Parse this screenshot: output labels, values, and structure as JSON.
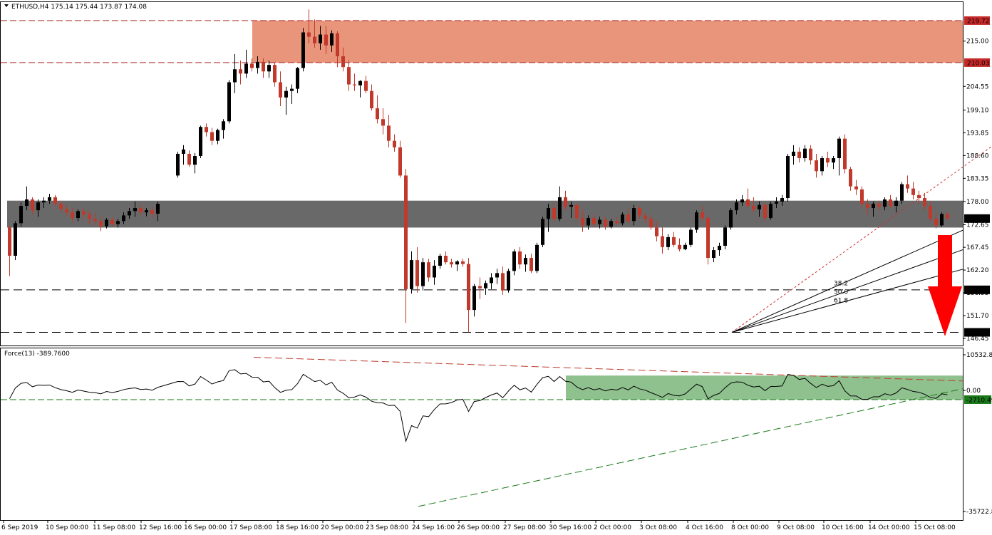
{
  "chart_data": [
    {
      "type": "candlestick",
      "header": {
        "title": "ETHUSD,H4",
        "ohlc": [
          "175.14",
          "175.44",
          "173.87",
          "174.08"
        ]
      },
      "ylim": [
        146.45,
        222.5
      ],
      "y_ticks": [
        "215.00",
        "204.55",
        "199.10",
        "193.85",
        "188.60",
        "183.35",
        "178.00",
        "172.65",
        "167.45",
        "162.20",
        "156.95",
        "151.70",
        "146.45"
      ],
      "price_labels": [
        {
          "value": 219.72,
          "text": "219.72",
          "color": "#c62828"
        },
        {
          "value": 210.03,
          "text": "210.03",
          "color": "#c62828"
        },
        {
          "value": 174.08,
          "text": "174.08",
          "color": "#000000"
        },
        {
          "value": 157.64,
          "text": "157.64",
          "color": "#000000"
        },
        {
          "value": 147.84,
          "text": "147.84",
          "color": "#000000"
        }
      ],
      "x_labels": [
        "6 Sep 2019",
        "10 Sep 00:00",
        "11 Sep 08:00",
        "12 Sep 16:00",
        "16 Sep 00:00",
        "17 Sep 08:00",
        "18 Sep 16:00",
        "20 Sep 00:00",
        "23 Sep 08:00",
        "24 Sep 16:00",
        "26 Sep 00:00",
        "27 Sep 08:00",
        "30 Sep 16:00",
        "2 Oct 00:00",
        "3 Oct 08:00",
        "4 Oct 16:00",
        "8 Oct 00:00",
        "9 Oct 08:00",
        "10 Oct 16:00",
        "14 Oct 00:00",
        "15 Oct 08:00"
      ],
      "candles_ohlc": [
        [
          172.0,
          172.5,
          160.8,
          165.5
        ],
        [
          165.5,
          173.5,
          164.5,
          173.0
        ],
        [
          173.0,
          177.8,
          172.2,
          177.0
        ],
        [
          177.0,
          181.5,
          176.0,
          178.5
        ],
        [
          178.5,
          179.0,
          175.0,
          176.0
        ],
        [
          176.0,
          178.5,
          174.5,
          177.8
        ],
        [
          177.8,
          179.0,
          176.5,
          178.2
        ],
        [
          178.2,
          179.8,
          177.5,
          179.0
        ],
        [
          179.0,
          179.5,
          176.8,
          177.5
        ],
        [
          177.5,
          178.2,
          175.5,
          176.3
        ],
        [
          176.3,
          177.2,
          174.8,
          175.5
        ],
        [
          175.5,
          176.5,
          173.2,
          174.2
        ],
        [
          174.2,
          176.2,
          173.5,
          175.8
        ],
        [
          175.8,
          176.5,
          174.0,
          175.0
        ],
        [
          175.0,
          175.8,
          172.8,
          174.0
        ],
        [
          174.0,
          175.5,
          172.5,
          173.5
        ],
        [
          173.5,
          174.5,
          171.2,
          172.3
        ],
        [
          172.3,
          174.2,
          171.8,
          173.8
        ],
        [
          173.8,
          174.5,
          172.2,
          172.8
        ],
        [
          172.8,
          174.0,
          172.0,
          173.5
        ],
        [
          173.5,
          175.5,
          172.8,
          174.8
        ],
        [
          174.8,
          176.5,
          174.0,
          175.8
        ],
        [
          175.8,
          178.0,
          174.5,
          176.5
        ],
        [
          176.5,
          177.5,
          174.8,
          175.5
        ],
        [
          175.5,
          176.5,
          174.6,
          176.0
        ],
        [
          176.0,
          176.8,
          174.2,
          175.2
        ],
        [
          175.2,
          178.0,
          173.5,
          177.5
        ],
        [
          184.0,
          189.5,
          183.5,
          189.0
        ],
        [
          189.0,
          191.0,
          186.5,
          190.0
        ],
        [
          189.0,
          189.8,
          186.0,
          186.5
        ],
        [
          186.5,
          189.2,
          184.5,
          188.5
        ],
        [
          188.5,
          195.5,
          188.0,
          195.2
        ],
        [
          195.2,
          196.0,
          193.0,
          194.0
        ],
        [
          194.0,
          195.0,
          191.0,
          192.0
        ],
        [
          192.0,
          194.8,
          191.2,
          194.5
        ],
        [
          194.5,
          197.0,
          192.5,
          196.5
        ],
        [
          196.5,
          206.0,
          196.0,
          205.5
        ],
        [
          205.5,
          212.0,
          203.0,
          208.5
        ],
        [
          208.5,
          210.5,
          205.0,
          207.5
        ],
        [
          207.5,
          213.0,
          206.5,
          209.8
        ],
        [
          209.8,
          211.0,
          208.0,
          208.8
        ],
        [
          208.8,
          211.5,
          207.5,
          210.2
        ],
        [
          210.2,
          211.0,
          206.5,
          208.0
        ],
        [
          208.0,
          210.5,
          206.5,
          209.5
        ],
        [
          209.5,
          210.0,
          204.5,
          205.5
        ],
        [
          205.5,
          208.0,
          200.0,
          202.0
        ],
        [
          202.0,
          204.5,
          198.0,
          203.5
        ],
        [
          203.5,
          205.0,
          200.5,
          204.0
        ],
        [
          204.0,
          209.0,
          203.0,
          208.8
        ],
        [
          208.8,
          218.0,
          208.0,
          217.0
        ],
        [
          217.0,
          222.3,
          214.5,
          216.0
        ],
        [
          216.0,
          220.0,
          213.5,
          214.5
        ],
        [
          214.5,
          218.5,
          213.0,
          216.5
        ],
        [
          216.5,
          218.5,
          212.0,
          214.0
        ],
        [
          214.0,
          217.5,
          212.5,
          216.8
        ],
        [
          216.8,
          217.3,
          209.0,
          211.5
        ],
        [
          211.5,
          213.5,
          208.0,
          209.0
        ],
        [
          209.0,
          210.5,
          203.5,
          205.0
        ],
        [
          205.0,
          207.5,
          203.5,
          204.8
        ],
        [
          204.8,
          206.0,
          202.0,
          205.8
        ],
        [
          205.8,
          207.0,
          203.0,
          203.5
        ],
        [
          203.5,
          205.0,
          199.0,
          199.5
        ],
        [
          199.5,
          202.5,
          196.0,
          197.0
        ],
        [
          197.0,
          199.5,
          193.5,
          195.5
        ],
        [
          195.5,
          198.0,
          190.5,
          192.0
        ],
        [
          192.0,
          193.5,
          189.5,
          190.5
        ],
        [
          190.5,
          192.0,
          183.5,
          184.0
        ],
        [
          184.0,
          185.5,
          150.0,
          157.8
        ],
        [
          157.8,
          166.5,
          156.8,
          164.5
        ],
        [
          164.5,
          167.5,
          157.0,
          158.5
        ],
        [
          158.5,
          165.0,
          157.5,
          164.0
        ],
        [
          164.0,
          164.8,
          159.5,
          160.5
        ],
        [
          160.5,
          164.5,
          158.8,
          163.2
        ],
        [
          163.2,
          166.0,
          162.5,
          165.5
        ],
        [
          165.5,
          166.5,
          163.5,
          164.0
        ],
        [
          164.0,
          164.8,
          162.8,
          163.5
        ],
        [
          163.5,
          164.5,
          162.0,
          164.2
        ],
        [
          164.2,
          164.8,
          163.0,
          163.6
        ],
        [
          163.6,
          165.0,
          147.84,
          153.0
        ],
        [
          153.0,
          159.0,
          151.5,
          158.5
        ],
        [
          158.5,
          160.5,
          155.5,
          158.0
        ],
        [
          158.0,
          159.8,
          156.5,
          159.2
        ],
        [
          159.2,
          161.5,
          157.8,
          160.5
        ],
        [
          160.5,
          162.5,
          159.0,
          161.5
        ],
        [
          161.5,
          163.0,
          156.5,
          157.5
        ],
        [
          157.5,
          162.5,
          157.0,
          162.0
        ],
        [
          162.0,
          167.0,
          161.0,
          166.5
        ],
        [
          166.5,
          167.5,
          162.5,
          163.5
        ],
        [
          163.5,
          165.8,
          161.8,
          165.0
        ],
        [
          165.0,
          166.0,
          161.5,
          162.0
        ],
        [
          162.0,
          168.5,
          161.5,
          168.0
        ],
        [
          168.0,
          174.5,
          167.5,
          174.0
        ],
        [
          174.0,
          177.5,
          171.0,
          176.5
        ],
        [
          176.5,
          177.8,
          173.5,
          174.0
        ],
        [
          174.0,
          181.5,
          173.5,
          179.0
        ],
        [
          179.0,
          180.5,
          176.0,
          176.8
        ],
        [
          176.8,
          178.0,
          174.2,
          177.2
        ],
        [
          177.2,
          177.5,
          173.5,
          174.2
        ],
        [
          174.2,
          176.0,
          171.0,
          172.5
        ],
        [
          172.5,
          174.8,
          171.5,
          174.2
        ],
        [
          174.2,
          175.0,
          172.0,
          172.8
        ],
        [
          172.8,
          174.5,
          171.8,
          173.8
        ],
        [
          173.8,
          174.5,
          171.5,
          172.2
        ],
        [
          172.2,
          174.0,
          171.8,
          173.5
        ],
        [
          173.5,
          174.5,
          172.5,
          173.0
        ],
        [
          173.0,
          175.5,
          172.5,
          175.0
        ],
        [
          175.0,
          176.5,
          173.0,
          173.5
        ],
        [
          173.5,
          177.2,
          172.5,
          176.5
        ],
        [
          176.5,
          177.0,
          174.0,
          174.8
        ],
        [
          174.8,
          175.5,
          173.0,
          174.0
        ],
        [
          174.0,
          174.8,
          171.5,
          172.0
        ],
        [
          172.0,
          173.5,
          168.8,
          170.0
        ],
        [
          170.0,
          172.0,
          166.0,
          167.5
        ],
        [
          167.5,
          170.5,
          166.8,
          169.8
        ],
        [
          169.8,
          171.0,
          167.5,
          168.0
        ],
        [
          168.0,
          169.5,
          166.5,
          167.0
        ],
        [
          167.0,
          168.5,
          166.8,
          168.0
        ],
        [
          168.0,
          172.0,
          167.5,
          171.5
        ],
        [
          171.5,
          176.0,
          170.8,
          175.5
        ],
        [
          175.5,
          177.0,
          173.5,
          174.2
        ],
        [
          174.2,
          175.0,
          163.5,
          165.0
        ],
        [
          165.0,
          167.5,
          164.0,
          166.8
        ],
        [
          166.8,
          168.5,
          165.5,
          167.8
        ],
        [
          167.8,
          172.5,
          167.0,
          172.0
        ],
        [
          172.0,
          176.5,
          171.5,
          176.0
        ],
        [
          176.0,
          178.5,
          175.0,
          177.8
        ],
        [
          177.8,
          179.5,
          177.0,
          178.5
        ],
        [
          178.5,
          181.0,
          176.5,
          177.0
        ],
        [
          177.0,
          179.0,
          175.5,
          176.2
        ],
        [
          176.2,
          178.0,
          174.5,
          177.2
        ],
        [
          177.2,
          177.8,
          173.5,
          174.2
        ],
        [
          174.2,
          178.0,
          173.8,
          177.5
        ],
        [
          177.5,
          179.0,
          176.5,
          178.0
        ],
        [
          178.0,
          179.5,
          177.0,
          178.8
        ],
        [
          178.8,
          189.0,
          178.0,
          188.5
        ],
        [
          188.5,
          191.0,
          186.5,
          189.5
        ],
        [
          189.5,
          190.5,
          187.0,
          188.0
        ],
        [
          188.0,
          191.0,
          187.2,
          190.2
        ],
        [
          190.2,
          191.0,
          186.5,
          187.5
        ],
        [
          187.5,
          189.0,
          183.5,
          185.0
        ],
        [
          185.0,
          188.5,
          184.0,
          188.0
        ],
        [
          188.0,
          189.5,
          186.0,
          187.0
        ],
        [
          187.0,
          188.5,
          185.5,
          188.0
        ],
        [
          188.0,
          193.0,
          184.0,
          192.5
        ],
        [
          192.5,
          193.5,
          184.5,
          185.5
        ],
        [
          185.5,
          186.0,
          180.5,
          181.5
        ],
        [
          181.5,
          183.0,
          179.5,
          180.8
        ],
        [
          180.8,
          181.5,
          176.5,
          177.5
        ],
        [
          177.5,
          178.5,
          175.0,
          176.5
        ],
        [
          176.5,
          178.0,
          174.5,
          177.5
        ],
        [
          177.5,
          178.2,
          176.0,
          176.8
        ],
        [
          176.8,
          179.0,
          176.0,
          178.5
        ],
        [
          178.5,
          179.5,
          176.5,
          177.0
        ],
        [
          177.0,
          179.0,
          175.5,
          178.2
        ],
        [
          178.2,
          182.5,
          177.5,
          182.0
        ],
        [
          182.0,
          184.0,
          180.0,
          181.0
        ],
        [
          181.0,
          182.5,
          178.5,
          179.5
        ],
        [
          179.5,
          180.5,
          177.5,
          178.8
        ],
        [
          178.8,
          180.0,
          176.0,
          177.0
        ],
        [
          177.0,
          178.0,
          173.5,
          174.0
        ],
        [
          174.0,
          175.5,
          171.8,
          172.5
        ],
        [
          172.5,
          175.5,
          172.2,
          175.14
        ],
        [
          175.14,
          175.44,
          173.87,
          174.08
        ]
      ],
      "zones": [
        {
          "from": 210.03,
          "to": 219.72,
          "color": "#e9957b"
        },
        {
          "from": 172.0,
          "to": 178.2,
          "color": "#696969"
        }
      ],
      "horizontal_levels": [
        219.72,
        210.03,
        157.64,
        147.84
      ],
      "fib_fan": {
        "labels": [
          "38.2",
          "50.0",
          "61.8"
        ],
        "origin": {
          "candle": 124,
          "price": 147.84
        },
        "swing_high": {
          "candle": 172,
          "price": 193.0
        }
      },
      "force_index": {
        "title": "Force(13) -389.7600",
        "ylim": [
          -35722.8,
          10532.8
        ],
        "tick_labels": [
          "10532.81",
          "0.00",
          "-2710.49",
          "-35722.8"
        ],
        "level": -2710.49,
        "green_zone": {
          "from": -2710.49,
          "to": 4400,
          "color": "#8fc18f"
        }
      }
    }
  ]
}
